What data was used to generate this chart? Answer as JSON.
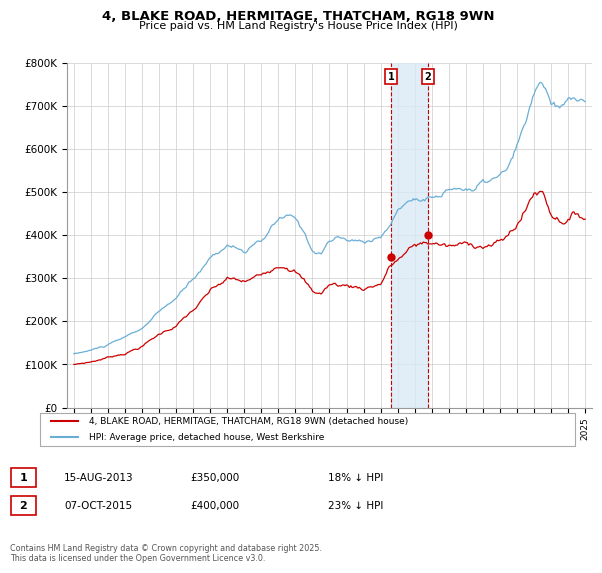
{
  "title": "4, BLAKE ROAD, HERMITAGE, THATCHAM, RG18 9WN",
  "subtitle": "Price paid vs. HM Land Registry's House Price Index (HPI)",
  "hpi_color": "#6aaed6",
  "price_color": "#cc0000",
  "annotation_box_color": "#cc0000",
  "highlight_color_fill": "#daeaf5",
  "highlight_color_border": "#cc0000",
  "ylim": [
    0,
    800000
  ],
  "yticks": [
    0,
    100000,
    200000,
    300000,
    400000,
    500000,
    600000,
    700000,
    800000
  ],
  "ytick_labels": [
    "£0",
    "£100K",
    "£200K",
    "£300K",
    "£400K",
    "£500K",
    "£600K",
    "£700K",
    "£800K"
  ],
  "transaction1": {
    "date": "15-AUG-2013",
    "price": 350000,
    "pct": "18%",
    "label": "1",
    "year": 2013.62
  },
  "transaction2": {
    "date": "07-OCT-2015",
    "price": 400000,
    "pct": "23%",
    "label": "2",
    "year": 2015.77
  },
  "legend_label_price": "4, BLAKE ROAD, HERMITAGE, THATCHAM, RG18 9WN (detached house)",
  "legend_label_hpi": "HPI: Average price, detached house, West Berkshire",
  "footer": "Contains HM Land Registry data © Crown copyright and database right 2025.\nThis data is licensed under the Open Government Licence v3.0."
}
